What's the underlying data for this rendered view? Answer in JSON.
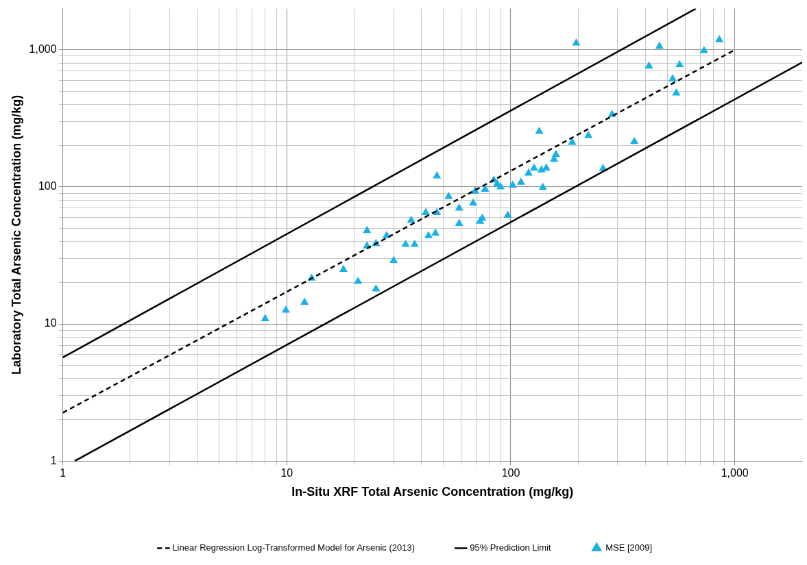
{
  "chart_data": {
    "type": "scatter",
    "xlabel": "In-Situ XRF Total Arsenic Concentration (mg/kg)",
    "ylabel": "Laboratory Total Arsenic Concentration (mg/kg)",
    "log": "xy",
    "grid": true,
    "legend": "bottom",
    "xlim": [
      1,
      2000
    ],
    "ylim": [
      1,
      2000
    ],
    "xticks": [
      1,
      {
        "value": 2,
        "label": null
      },
      {
        "value": 3,
        "label": null
      },
      {
        "value": 4,
        "label": null
      },
      {
        "value": 5,
        "label": null
      },
      {
        "value": 6,
        "label": null
      },
      {
        "value": 7,
        "label": null
      },
      {
        "value": 8,
        "label": null
      },
      {
        "value": 9,
        "label": null
      },
      10,
      {
        "value": 20,
        "label": null
      },
      {
        "value": 30,
        "label": null
      },
      {
        "value": 40,
        "label": null
      },
      {
        "value": 50,
        "label": null
      },
      {
        "value": 60,
        "label": null
      },
      {
        "value": 70,
        "label": null
      },
      {
        "value": 80,
        "label": null
      },
      {
        "value": 90,
        "label": null
      },
      100,
      {
        "value": 200,
        "label": null
      },
      {
        "value": 300,
        "label": null
      },
      {
        "value": 400,
        "label": null
      },
      {
        "value": 500,
        "label": null
      },
      {
        "value": 600,
        "label": null
      },
      {
        "value": 700,
        "label": null
      },
      {
        "value": 800,
        "label": null
      },
      {
        "value": 900,
        "label": null
      },
      {
        "value": 1000,
        "label": "1,000"
      }
    ],
    "yticks": [
      1,
      {
        "value": 2,
        "label": null
      },
      {
        "value": 3,
        "label": null
      },
      {
        "value": 4,
        "label": null
      },
      {
        "value": 5,
        "label": null
      },
      {
        "value": 6,
        "label": null
      },
      {
        "value": 7,
        "label": null
      },
      {
        "value": 8,
        "label": null
      },
      {
        "value": 9,
        "label": null
      },
      10,
      {
        "value": 20,
        "label": null
      },
      {
        "value": 30,
        "label": null
      },
      {
        "value": 40,
        "label": null
      },
      {
        "value": 50,
        "label": null
      },
      {
        "value": 60,
        "label": null
      },
      {
        "value": 70,
        "label": null
      },
      {
        "value": 80,
        "label": null
      },
      {
        "value": 90,
        "label": null
      },
      100,
      {
        "value": 200,
        "label": null
      },
      {
        "value": 300,
        "label": null
      },
      {
        "value": 400,
        "label": null
      },
      {
        "value": 500,
        "label": null
      },
      {
        "value": 600,
        "label": null
      },
      {
        "value": 700,
        "label": null
      },
      {
        "value": 800,
        "label": null
      },
      {
        "value": 900,
        "label": null
      },
      {
        "value": 1000,
        "label": "1,000"
      }
    ],
    "series": [
      {
        "name": "Linear Regression Log-Transformed Model for Arsenic (2013)",
        "type": "line",
        "color": "#000000",
        "line_style": "dashed",
        "marker": "none",
        "x": [
          1,
          1000
        ],
        "values": [
          2.25,
          1000
        ]
      },
      {
        "name": "95% Prediction Limit",
        "type": "line",
        "color": "#000000",
        "line_style": "solid",
        "marker": "none",
        "x": [
          1,
          670
        ],
        "values": [
          5.7,
          2000
        ]
      },
      {
        "type": "line",
        "color": "#000000",
        "line_style": "solid",
        "marker": "none",
        "x": [
          1.13,
          2000
        ],
        "values": [
          1,
          810
        ]
      },
      {
        "name": "MSE [2009]",
        "color": "#1ab0e8",
        "marker": "triangle",
        "x": [
          8,
          9.9,
          12,
          12.9,
          17.9,
          20.8,
          22.8,
          22.8,
          25,
          25,
          27.9,
          30,
          33.9,
          35.9,
          37.2,
          41.7,
          42.9,
          46.1,
          46.8,
          46.8,
          52.8,
          58.8,
          58.8,
          67.9,
          69.3,
          72.9,
          74.5,
          76.7,
          84,
          87,
          90,
          97,
          102,
          111,
          120,
          127,
          134,
          137,
          139,
          144,
          156,
          159,
          188,
          196,
          222,
          258,
          283,
          356,
          414,
          461,
          528,
          548,
          567,
          729,
          853
        ],
        "values": [
          10.9,
          12.6,
          14.4,
          21.6,
          25,
          20.4,
          48,
          37,
          38.6,
          18,
          44,
          29,
          38,
          57,
          38,
          65,
          44,
          46,
          65,
          120,
          85,
          70,
          54,
          76,
          93,
          56,
          59,
          96,
          112,
          105,
          100,
          62,
          103,
          108,
          126,
          137,
          254,
          133,
          99,
          137,
          159,
          172,
          211,
          1120,
          237,
          136,
          337,
          214,
          762,
          1059,
          614,
          484,
          779,
          988,
          1186
        ]
      }
    ]
  }
}
